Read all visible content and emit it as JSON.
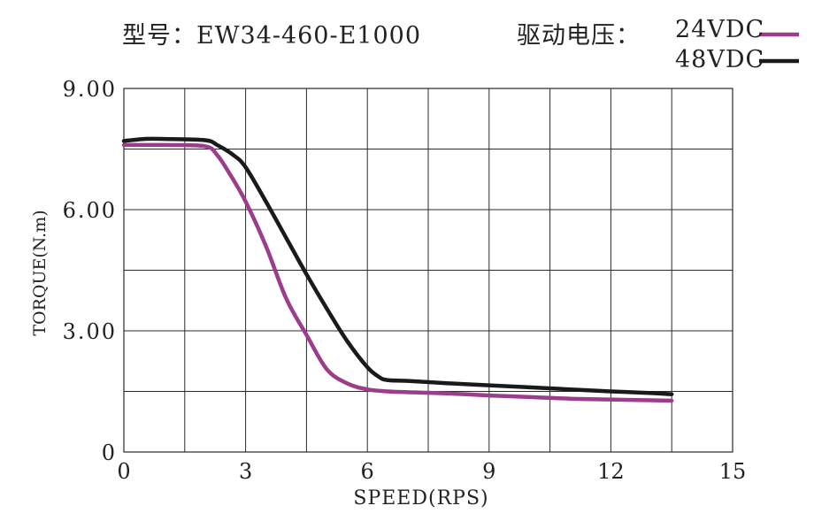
{
  "header": {
    "model_text": "型号：EW34-460-E1000",
    "voltage_label": "驱动电压："
  },
  "chart_data": {
    "type": "line",
    "xlabel": "SPEED(RPS)",
    "ylabel": "TORQUE(N.m)",
    "xlim": [
      0,
      15
    ],
    "ylim": [
      0,
      9
    ],
    "x_ticks": [
      0,
      3,
      6,
      9,
      12,
      15
    ],
    "x_tick_labels": [
      "0",
      "3",
      "6",
      "9",
      "12",
      "15"
    ],
    "y_ticks": [
      0,
      3,
      6,
      9
    ],
    "y_tick_labels": [
      "0",
      "3.00",
      "6.00",
      "9.00"
    ],
    "grid": true,
    "grid_x_step": 1.5,
    "grid_y_step": 1.5,
    "legend_position": "top-right",
    "series": [
      {
        "name": "24VDC",
        "color": "#9c3d8b",
        "x": [
          0,
          1,
          2.0,
          2.3,
          2.6,
          3.0,
          3.5,
          4.0,
          4.5,
          5.0,
          5.5,
          6.0,
          6.5,
          7.0,
          8.0,
          9.0,
          10.0,
          11.0,
          12.0,
          13.0,
          13.5
        ],
        "y": [
          7.6,
          7.6,
          7.57,
          7.35,
          6.9,
          6.2,
          5.1,
          3.8,
          2.9,
          2.05,
          1.7,
          1.55,
          1.5,
          1.48,
          1.45,
          1.4,
          1.36,
          1.32,
          1.3,
          1.28,
          1.27
        ]
      },
      {
        "name": "48VDC",
        "color": "#1a1a1a",
        "x": [
          0,
          0.5,
          1,
          2.0,
          2.3,
          2.7,
          3.0,
          3.5,
          4.0,
          4.5,
          5.0,
          5.5,
          6.0,
          6.3,
          6.5,
          7.0,
          8.0,
          9.0,
          10.0,
          11.0,
          12.0,
          13.0,
          13.5
        ],
        "y": [
          7.7,
          7.75,
          7.75,
          7.72,
          7.6,
          7.35,
          7.05,
          6.2,
          5.3,
          4.4,
          3.55,
          2.75,
          2.1,
          1.85,
          1.78,
          1.76,
          1.7,
          1.65,
          1.6,
          1.55,
          1.5,
          1.46,
          1.43
        ]
      }
    ]
  }
}
